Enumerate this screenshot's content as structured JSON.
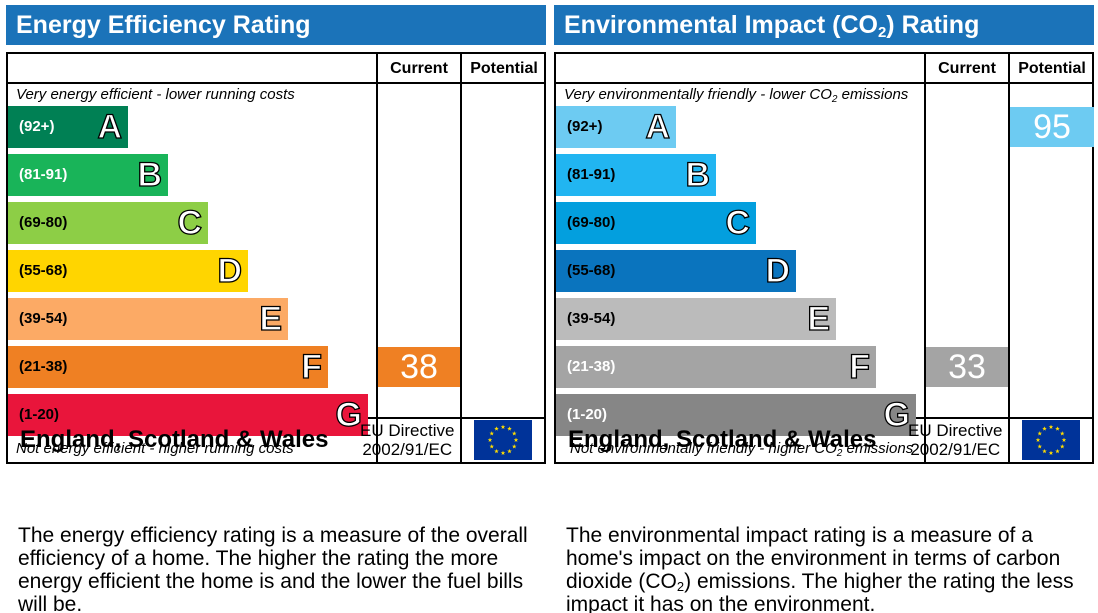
{
  "energy": {
    "title": "Energy Efficiency Rating",
    "col_current": "Current",
    "col_potential": "Potential",
    "top_note": "Very energy efficient - lower running costs",
    "bottom_note": "Not energy efficient - higher running costs",
    "bands": [
      {
        "range": "(92+)",
        "letter": "A",
        "color": "#008054",
        "range_color": "#ffffff"
      },
      {
        "range": "(81-91)",
        "letter": "B",
        "color": "#19b459",
        "range_color": "#ffffff"
      },
      {
        "range": "(69-80)",
        "letter": "C",
        "color": "#8dce46",
        "range_color": "#000000"
      },
      {
        "range": "(55-68)",
        "letter": "D",
        "color": "#ffd500",
        "range_color": "#000000"
      },
      {
        "range": "(39-54)",
        "letter": "E",
        "color": "#fcaa65",
        "range_color": "#000000"
      },
      {
        "range": "(21-38)",
        "letter": "F",
        "color": "#ef8023",
        "range_color": "#000000"
      },
      {
        "range": "(1-20)",
        "letter": "G",
        "color": "#e9153b",
        "range_color": "#000000"
      }
    ],
    "current": {
      "value": "38",
      "band": "F",
      "color": "#ef8023"
    },
    "potential": null,
    "country": "England, Scotland & Wales",
    "directive_line1": "EU Directive",
    "directive_line2": "2002/91/EC",
    "description": "The energy efficiency rating is a measure of the overall efficiency of a home. The higher the rating the more energy efficient the home is and the lower the fuel bills will be."
  },
  "environment": {
    "title_pre": "Environmental Impact (CO",
    "title_sub": "2",
    "title_post": ") Rating",
    "col_current": "Current",
    "col_potential": "Potential",
    "top_note_pre": "Very environmentally friendly - lower CO",
    "top_note_sub": "2",
    "top_note_post": " emissions",
    "bottom_note_pre": "Not environmentally friendly - higher CO",
    "bottom_note_sub": "2",
    "bottom_note_post": " emissions",
    "bands": [
      {
        "range": "(92+)",
        "letter": "A",
        "color": "#6dcbf2",
        "range_color": "#000000"
      },
      {
        "range": "(81-91)",
        "letter": "B",
        "color": "#21b5f1",
        "range_color": "#000000"
      },
      {
        "range": "(69-80)",
        "letter": "C",
        "color": "#039fde",
        "range_color": "#000000"
      },
      {
        "range": "(55-68)",
        "letter": "D",
        "color": "#0a74be",
        "range_color": "#000000"
      },
      {
        "range": "(39-54)",
        "letter": "E",
        "color": "#bbbbbb",
        "range_color": "#000000"
      },
      {
        "range": "(21-38)",
        "letter": "F",
        "color": "#a4a4a4",
        "range_color": "#ffffff"
      },
      {
        "range": "(1-20)",
        "letter": "G",
        "color": "#868686",
        "range_color": "#ffffff"
      }
    ],
    "current": {
      "value": "33",
      "band": "F",
      "color": "#a4a4a4"
    },
    "potential": {
      "value": "95",
      "band": "A",
      "color": "#6dcbf2"
    },
    "country": "England, Scotland & Wales",
    "directive_line1": "EU Directive",
    "directive_line2": "2002/91/EC",
    "desc_pre": "The environmental impact rating is a measure of a home's impact on the environment in terms of carbon dioxide (CO",
    "desc_sub": "2",
    "desc_post": ") emissions. The higher the rating the less impact it has on the environment."
  },
  "colors": {
    "title_bar": "#1b73b9",
    "eu_flag": "#003399",
    "eu_stars": "#ffdd00"
  }
}
